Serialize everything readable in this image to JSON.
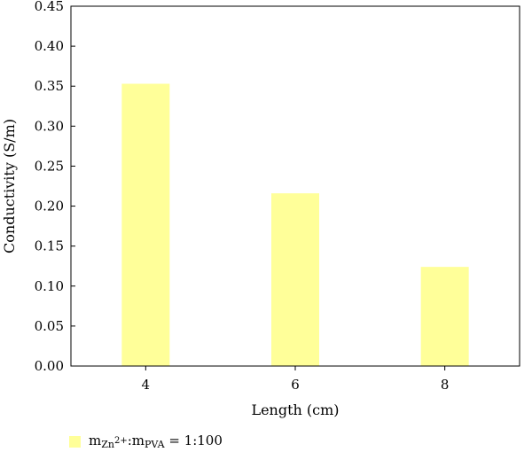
{
  "chart_data": {
    "type": "bar",
    "categories": [
      "4",
      "6",
      "8"
    ],
    "values": [
      0.353,
      0.216,
      0.124
    ],
    "xlabel": "Length (cm)",
    "ylabel": "Conductivity (S/m)",
    "ylim": [
      0,
      0.45
    ],
    "yticks": [
      "0.00",
      "0.05",
      "0.10",
      "0.15",
      "0.20",
      "0.25",
      "0.30",
      "0.35",
      "0.40",
      "0.45"
    ],
    "grid": false,
    "bar_color": "#ffff99",
    "legend": {
      "position": "bottom-left",
      "entry": {
        "m1": "m",
        "m1_sub": "Zn",
        "m1_sup": "2+",
        "sep": ":m",
        "m2_sub": "PVA",
        "ratio": " = 1:100"
      }
    }
  }
}
